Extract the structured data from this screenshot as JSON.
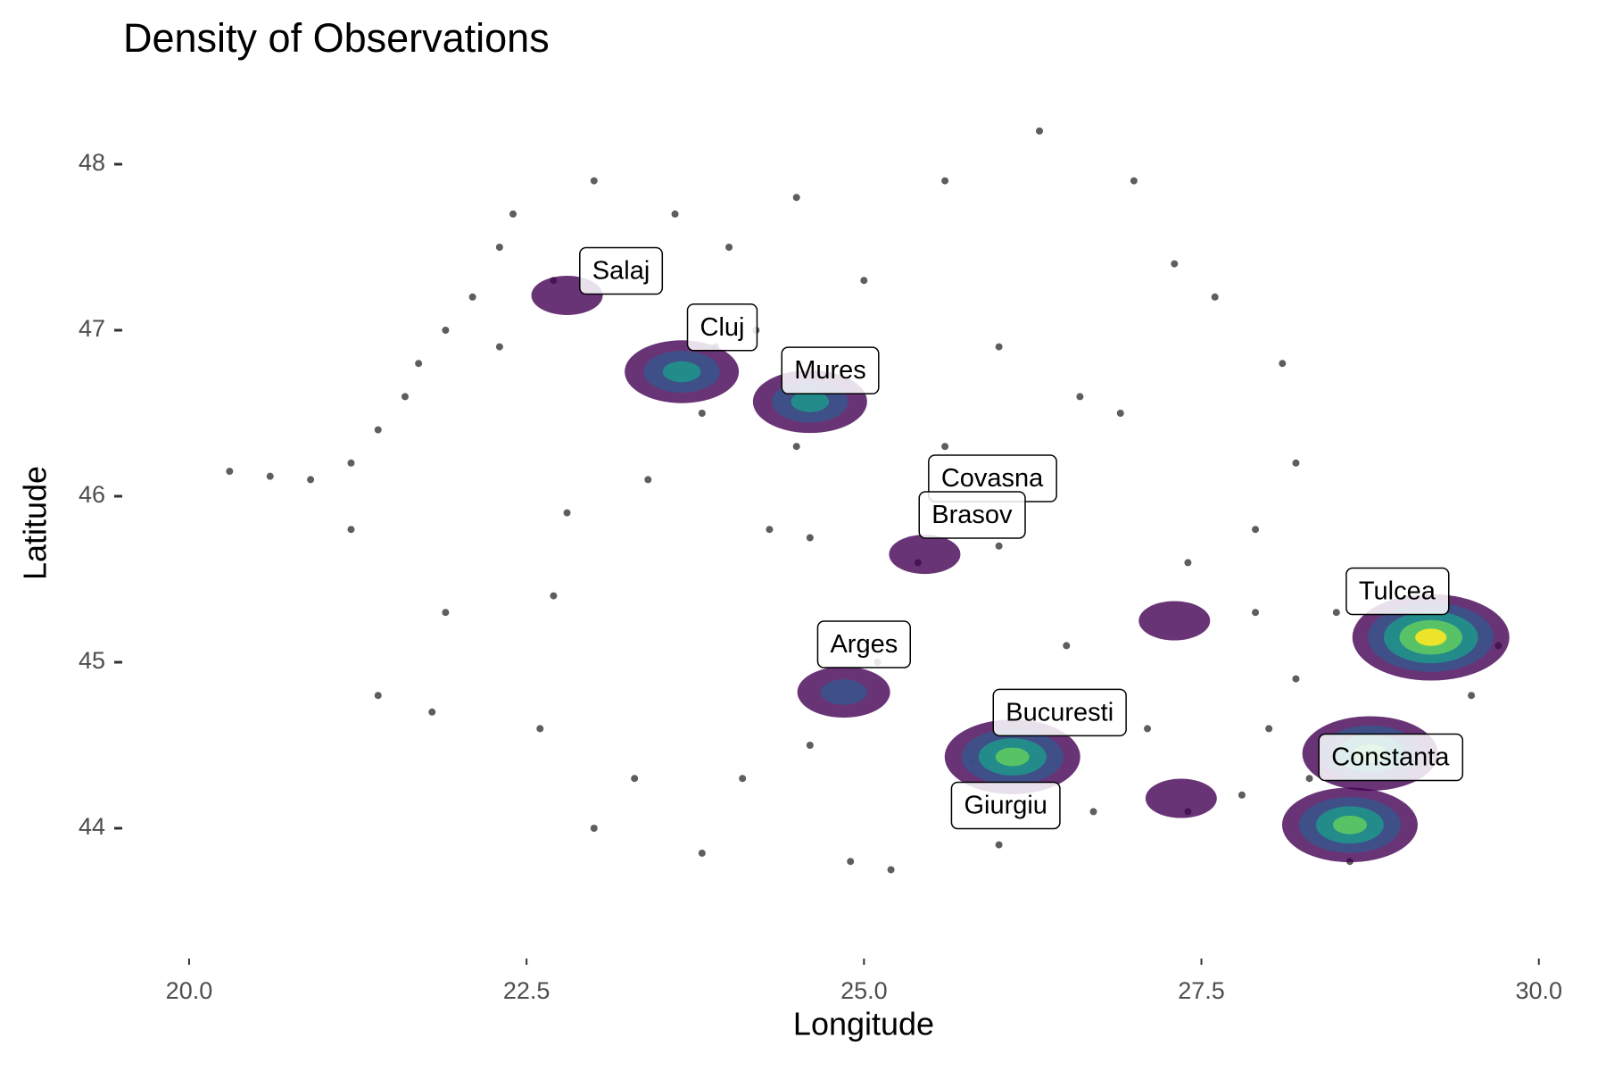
{
  "chart_data": {
    "type": "scatter",
    "title": "Density of Observations",
    "x_label": "Longitude",
    "y_label": "Latitude",
    "xlim": [
      19.8,
      30.2
    ],
    "ylim": [
      43.4,
      48.4
    ],
    "xticks": [
      {
        "value": 20,
        "label": "20.0"
      },
      22.5,
      {
        "value": 25,
        "label": "25.0"
      },
      27.5,
      {
        "value": 30,
        "label": "30.0"
      }
    ],
    "yticks": [
      44,
      45,
      46,
      47,
      48
    ],
    "point_color": "#1a1a1a",
    "x": [
      20.3,
      20.6,
      20.9,
      21.2,
      21.4,
      21.6,
      21.7,
      21.9,
      22.1,
      22.3,
      22.4,
      21.2,
      21.9,
      21.4,
      21.8,
      22.6,
      22.7,
      22.8,
      23.0,
      23.6,
      24.5,
      25.6,
      26.3,
      27.0,
      27.3,
      27.6,
      28.1,
      28.2,
      27.9,
      27.4,
      26.9,
      26.0,
      25.0,
      24.2,
      24.5,
      23.8,
      23.4,
      24.3,
      24.6,
      25.4,
      25.6,
      26.0,
      26.5,
      25.1,
      24.6,
      24.1,
      23.0,
      23.8,
      24.9,
      25.2,
      26.0,
      26.7,
      27.4,
      27.8,
      28.0,
      28.2,
      27.9,
      28.5,
      29.7,
      29.5,
      28.6,
      28.3,
      23.3,
      22.3,
      23.9,
      26.6,
      24.0,
      22.7,
      25.8,
      27.1
    ],
    "y": [
      46.15,
      46.12,
      46.1,
      46.2,
      46.4,
      46.6,
      46.8,
      47.0,
      47.2,
      47.5,
      47.7,
      45.8,
      45.3,
      44.8,
      44.7,
      44.6,
      45.4,
      45.9,
      47.9,
      47.7,
      47.8,
      47.9,
      48.2,
      47.9,
      47.4,
      47.2,
      46.8,
      46.2,
      45.8,
      45.6,
      46.5,
      46.9,
      47.3,
      47.0,
      46.3,
      46.5,
      46.1,
      45.8,
      45.75,
      45.6,
      46.3,
      45.7,
      45.1,
      45.0,
      44.5,
      44.3,
      44.0,
      43.85,
      43.8,
      43.75,
      43.9,
      44.1,
      44.1,
      44.2,
      44.6,
      44.9,
      45.3,
      45.3,
      45.1,
      44.8,
      43.8,
      44.3,
      44.3,
      46.9,
      46.9,
      46.6,
      47.5,
      47.3,
      44.4,
      44.6
    ],
    "palette": [
      "#440154",
      "#3b528b",
      "#21918c",
      "#5ec962",
      "#fde725"
    ],
    "density": [
      {
        "x": 22.8,
        "y": 47.21,
        "level": 1
      },
      {
        "x": 23.65,
        "y": 46.75,
        "level": 3
      },
      {
        "x": 24.6,
        "y": 46.57,
        "level": 3
      },
      {
        "x": 25.45,
        "y": 45.65,
        "level": 1
      },
      {
        "x": 24.85,
        "y": 44.82,
        "level": 2
      },
      {
        "x": 26.1,
        "y": 44.43,
        "level": 4
      },
      {
        "x": 27.3,
        "y": 45.25,
        "level": 1
      },
      {
        "x": 27.35,
        "y": 44.18,
        "level": 1
      },
      {
        "x": 29.2,
        "y": 45.15,
        "level": 5
      },
      {
        "x": 28.75,
        "y": 44.45,
        "level": 4
      },
      {
        "x": 28.6,
        "y": 44.02,
        "level": 4
      }
    ],
    "labels": [
      {
        "text": "Salaj",
        "x": 23.2,
        "y": 47.35
      },
      {
        "text": "Cluj",
        "x": 23.95,
        "y": 47.01
      },
      {
        "text": "Mures",
        "x": 24.75,
        "y": 46.75
      },
      {
        "text": "Covasna",
        "x": 25.95,
        "y": 46.1
      },
      {
        "text": "Brasov",
        "x": 25.8,
        "y": 45.88
      },
      {
        "text": "Arges",
        "x": 25.0,
        "y": 45.1
      },
      {
        "text": "Bucuresti",
        "x": 26.45,
        "y": 44.69
      },
      {
        "text": "Giurgiu",
        "x": 26.05,
        "y": 44.13
      },
      {
        "text": "Tulcea",
        "x": 28.95,
        "y": 45.42
      },
      {
        "text": "Constanta",
        "x": 28.9,
        "y": 44.42
      }
    ]
  }
}
